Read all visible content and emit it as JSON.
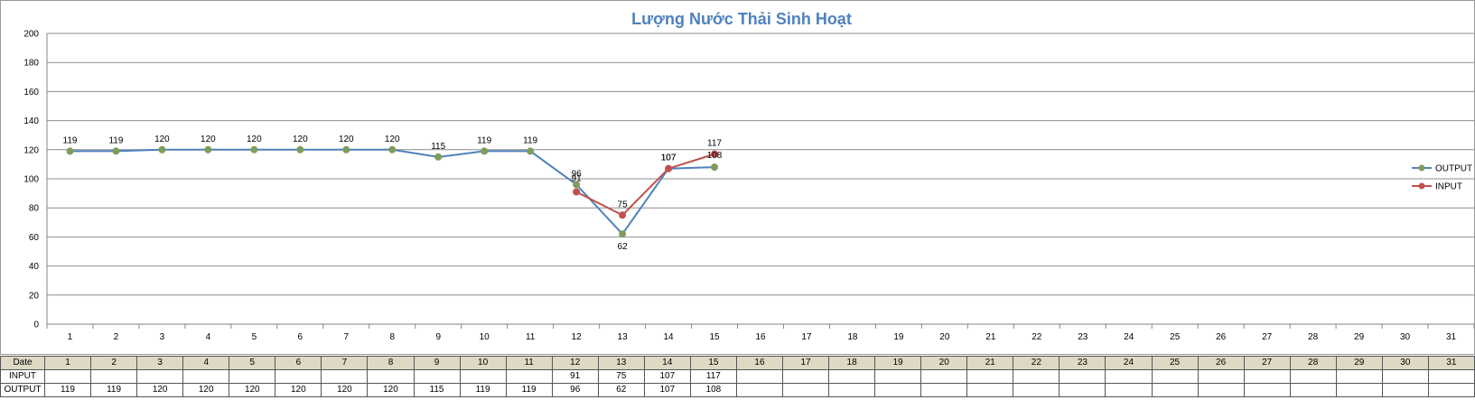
{
  "chart_data": {
    "type": "line",
    "title": "Lượng Nước  Thải Sinh Hoạt",
    "categories": [
      "1",
      "2",
      "3",
      "4",
      "5",
      "6",
      "7",
      "8",
      "9",
      "10",
      "11",
      "12",
      "13",
      "14",
      "15",
      "16",
      "17",
      "18",
      "19",
      "20",
      "21",
      "22",
      "23",
      "24",
      "25",
      "26",
      "27",
      "28",
      "29",
      "30",
      "31"
    ],
    "ylim": [
      0,
      200
    ],
    "yticks": [
      0,
      20,
      40,
      60,
      80,
      100,
      120,
      140,
      160,
      180,
      200
    ],
    "grid": true,
    "legend_position": "right",
    "series": [
      {
        "name": "OUTPUT",
        "color": "#4f81bd",
        "marker_color": "#7f9c5b",
        "values": [
          119,
          119,
          120,
          120,
          120,
          120,
          120,
          120,
          115,
          119,
          119,
          96,
          62,
          107,
          108,
          null,
          null,
          null,
          null,
          null,
          null,
          null,
          null,
          null,
          null,
          null,
          null,
          null,
          null,
          null,
          null
        ]
      },
      {
        "name": "INPUT",
        "color": "#c0504d",
        "marker_color": "#c0504d",
        "values": [
          null,
          null,
          null,
          null,
          null,
          null,
          null,
          null,
          null,
          null,
          null,
          91,
          75,
          107,
          117,
          null,
          null,
          null,
          null,
          null,
          null,
          null,
          null,
          null,
          null,
          null,
          null,
          null,
          null,
          null,
          null
        ]
      }
    ]
  },
  "table": {
    "header_label": "Date",
    "row_labels": [
      "INPUT",
      "OUTPUT"
    ]
  }
}
